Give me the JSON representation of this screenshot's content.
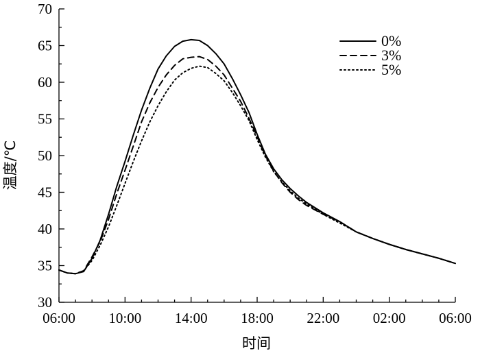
{
  "chart_data": {
    "type": "line",
    "xlabel": "时间",
    "ylabel": "温度/℃",
    "xlim": [
      0,
      24
    ],
    "ylim": [
      30,
      70
    ],
    "x_tick_values": [
      0,
      4,
      8,
      12,
      16,
      20,
      24
    ],
    "x_tick_labels": [
      "06:00",
      "10:00",
      "14:00",
      "18:00",
      "22:00",
      "02:00",
      "06:00"
    ],
    "y_ticks": [
      30,
      35,
      40,
      45,
      50,
      55,
      60,
      65,
      70
    ],
    "x_minor_step": 1,
    "y_minor_step": 2.5,
    "grid": false,
    "legend_position": "top-right",
    "series": [
      {
        "name": "0%",
        "style": "solid",
        "points": [
          [
            0,
            34.4
          ],
          [
            0.5,
            34.0
          ],
          [
            1.0,
            33.9
          ],
          [
            1.5,
            34.2
          ],
          [
            2.0,
            36.0
          ],
          [
            2.5,
            38.5
          ],
          [
            3.0,
            42.0
          ],
          [
            3.5,
            45.8
          ],
          [
            4.0,
            49.2
          ],
          [
            4.5,
            52.8
          ],
          [
            5.0,
            56.2
          ],
          [
            5.5,
            59.2
          ],
          [
            6.0,
            61.8
          ],
          [
            6.5,
            63.6
          ],
          [
            7.0,
            64.9
          ],
          [
            7.5,
            65.6
          ],
          [
            8.0,
            65.8
          ],
          [
            8.5,
            65.7
          ],
          [
            9.0,
            65.0
          ],
          [
            9.5,
            63.9
          ],
          [
            10.0,
            62.5
          ],
          [
            10.5,
            60.5
          ],
          [
            11.0,
            58.3
          ],
          [
            11.5,
            55.9
          ],
          [
            12.0,
            52.9
          ],
          [
            12.5,
            50.2
          ],
          [
            13.0,
            48.2
          ],
          [
            13.5,
            46.7
          ],
          [
            14.0,
            45.5
          ],
          [
            14.5,
            44.5
          ],
          [
            15.0,
            43.6
          ],
          [
            16.0,
            42.2
          ],
          [
            17.0,
            41.0
          ],
          [
            18.0,
            39.6
          ],
          [
            19.0,
            38.7
          ],
          [
            20.0,
            37.9
          ],
          [
            21.0,
            37.2
          ],
          [
            22.0,
            36.6
          ],
          [
            23.0,
            36.0
          ],
          [
            24.0,
            35.3
          ]
        ]
      },
      {
        "name": "3%",
        "style": "dashed",
        "points": [
          [
            0,
            34.4
          ],
          [
            0.5,
            34.0
          ],
          [
            1.0,
            33.9
          ],
          [
            1.5,
            34.3
          ],
          [
            2.0,
            36.2
          ],
          [
            2.5,
            38.3
          ],
          [
            3.0,
            41.3
          ],
          [
            3.5,
            44.8
          ],
          [
            4.0,
            48.0
          ],
          [
            4.5,
            51.3
          ],
          [
            5.0,
            54.6
          ],
          [
            5.5,
            57.2
          ],
          [
            6.0,
            59.3
          ],
          [
            6.5,
            61.0
          ],
          [
            7.0,
            62.3
          ],
          [
            7.5,
            63.2
          ],
          [
            8.0,
            63.4
          ],
          [
            8.5,
            63.5
          ],
          [
            9.0,
            63.1
          ],
          [
            9.5,
            62.2
          ],
          [
            10.0,
            61.0
          ],
          [
            10.5,
            59.2
          ],
          [
            11.0,
            57.4
          ],
          [
            11.5,
            55.1
          ],
          [
            12.0,
            52.6
          ],
          [
            12.5,
            50.0
          ],
          [
            13.0,
            47.9
          ],
          [
            13.5,
            46.3
          ],
          [
            14.0,
            45.0
          ],
          [
            14.5,
            44.0
          ],
          [
            15.0,
            43.2
          ],
          [
            16.0,
            42.0
          ],
          [
            17.0,
            41.0
          ],
          [
            18.0,
            39.6
          ],
          [
            19.0,
            38.7
          ],
          [
            20.0,
            37.9
          ],
          [
            21.0,
            37.2
          ],
          [
            22.0,
            36.6
          ],
          [
            23.0,
            36.0
          ],
          [
            24.0,
            35.3
          ]
        ]
      },
      {
        "name": "5%",
        "style": "dotted",
        "points": [
          [
            0,
            34.4
          ],
          [
            0.5,
            34.0
          ],
          [
            1.0,
            33.9
          ],
          [
            1.5,
            34.3
          ],
          [
            2.0,
            35.7
          ],
          [
            2.5,
            37.8
          ],
          [
            3.0,
            40.3
          ],
          [
            3.5,
            43.2
          ],
          [
            4.0,
            46.2
          ],
          [
            4.5,
            49.2
          ],
          [
            5.0,
            52.0
          ],
          [
            5.5,
            54.6
          ],
          [
            6.0,
            56.8
          ],
          [
            6.5,
            58.7
          ],
          [
            7.0,
            60.3
          ],
          [
            7.5,
            61.3
          ],
          [
            8.0,
            61.9
          ],
          [
            8.5,
            62.2
          ],
          [
            9.0,
            62.0
          ],
          [
            9.5,
            61.2
          ],
          [
            10.0,
            60.2
          ],
          [
            10.5,
            58.6
          ],
          [
            11.0,
            56.8
          ],
          [
            11.5,
            54.8
          ],
          [
            12.0,
            52.2
          ],
          [
            12.5,
            49.8
          ],
          [
            13.0,
            47.8
          ],
          [
            13.5,
            46.4
          ],
          [
            14.0,
            45.2
          ],
          [
            14.5,
            44.2
          ],
          [
            15.0,
            43.4
          ],
          [
            16.0,
            42.0
          ],
          [
            17.0,
            40.8
          ],
          [
            18.0,
            39.6
          ],
          [
            19.0,
            38.7
          ],
          [
            20.0,
            37.9
          ],
          [
            21.0,
            37.2
          ],
          [
            22.0,
            36.6
          ],
          [
            23.0,
            36.0
          ],
          [
            24.0,
            35.3
          ]
        ]
      }
    ]
  }
}
